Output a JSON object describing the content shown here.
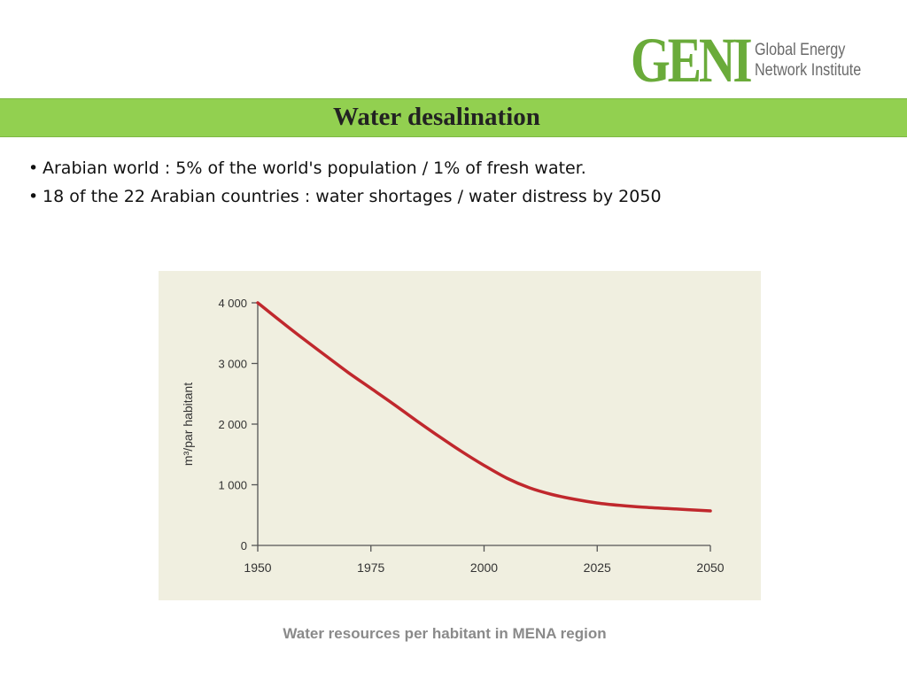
{
  "logo": {
    "mark": "GENI",
    "line1": "Global Energy",
    "line2": "Network Institute",
    "color": "#6aab3a"
  },
  "slide": {
    "title": "Water desalination",
    "bullets": [
      "Arabian world : 5% of the world's population / 1% of fresh water.",
      "18 of the 22 Arabian countries : water shortages / water distress by 2050"
    ],
    "caption": "Water resources per habitant in MENA region"
  },
  "chart_data": {
    "type": "line",
    "title": "",
    "xlabel": "",
    "ylabel": "m³/par habitant",
    "xlim": [
      1950,
      2050
    ],
    "ylim": [
      0,
      4000
    ],
    "x_ticks": [
      1950,
      1975,
      2000,
      2025,
      2050
    ],
    "x_tick_labels": [
      "1950",
      "1975",
      "2000",
      "2025",
      "2050"
    ],
    "y_ticks": [
      0,
      1000,
      2000,
      3000,
      4000
    ],
    "y_tick_labels": [
      "0",
      "1 000",
      "2 000",
      "3 000",
      "4 000"
    ],
    "grid": false,
    "background": "#f0efe0",
    "series": [
      {
        "color": "#c0282d",
        "x": [
          1950,
          1955,
          1960,
          1965,
          1970,
          1975,
          1980,
          1985,
          1990,
          1995,
          2000,
          2005,
          2010,
          2015,
          2020,
          2025,
          2030,
          2035,
          2040,
          2045,
          2050
        ],
        "y": [
          4000,
          3700,
          3410,
          3130,
          2850,
          2590,
          2330,
          2060,
          1800,
          1550,
          1320,
          1110,
          950,
          840,
          760,
          700,
          660,
          630,
          610,
          590,
          570
        ]
      }
    ]
  }
}
